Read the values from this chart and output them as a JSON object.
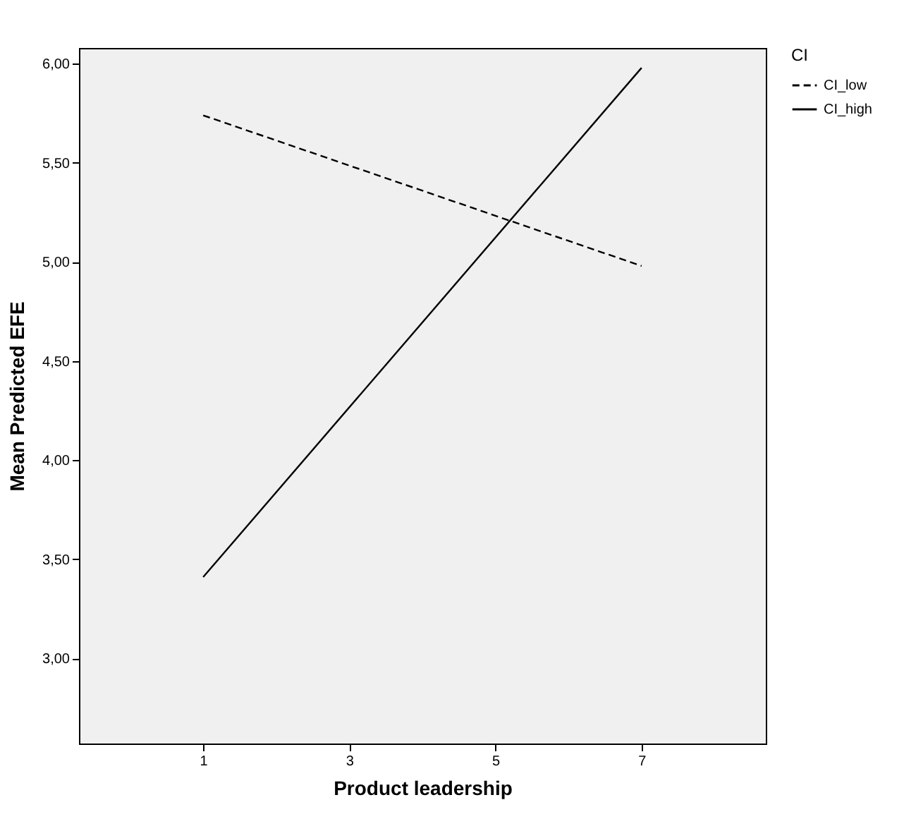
{
  "chart_data": {
    "type": "line",
    "xlabel": "Product leadership",
    "ylabel": "Mean Predicted EFE",
    "legend_title": "CI",
    "x": [
      1,
      7
    ],
    "series": [
      {
        "name": "CI_low",
        "color": "#000000",
        "line_style": "dashed",
        "values": [
          5.74,
          4.98
        ]
      },
      {
        "name": "CI_high",
        "color": "#000000",
        "line_style": "solid",
        "values": [
          3.41,
          5.98
        ]
      }
    ],
    "xlim": [
      -0.7,
      8.7
    ],
    "xticks": [
      1,
      3,
      5,
      7
    ],
    "ylim": [
      2.57,
      6.08
    ],
    "yticks": [
      {
        "value": 3,
        "label": "3,00"
      },
      {
        "value": 3.5,
        "label": "3,50"
      },
      {
        "value": 4,
        "label": "4,00"
      },
      {
        "value": 4.5,
        "label": "4,50"
      },
      {
        "value": 5,
        "label": "5,00"
      },
      {
        "value": 5.5,
        "label": "5,50"
      },
      {
        "value": 6,
        "label": "6,00"
      }
    ],
    "grid": false,
    "legend": "top right",
    "marker": "none"
  }
}
